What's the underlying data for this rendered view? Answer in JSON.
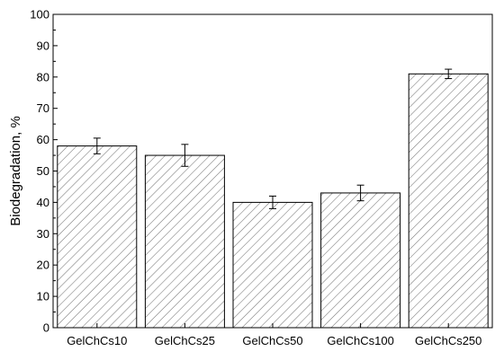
{
  "chart_data": {
    "type": "bar",
    "categories": [
      "GelChCs10",
      "GelChCs25",
      "GelChCs50",
      "GelChCs100",
      "GelChCs250"
    ],
    "values": [
      58,
      55,
      40,
      43,
      81
    ],
    "errors": [
      2.5,
      3.5,
      2,
      2.5,
      1.5
    ],
    "title": "",
    "xlabel": "",
    "ylabel": "Biodegradation, %",
    "ylim": [
      0,
      100
    ],
    "yticks": [
      0,
      10,
      20,
      30,
      40,
      50,
      60,
      70,
      80,
      90,
      100
    ],
    "grid": false,
    "bar_fill": "hatched",
    "colors": {
      "axis": "#000000",
      "bar_edge": "#000000",
      "hatch": "#777777",
      "background": "#ffffff"
    }
  }
}
